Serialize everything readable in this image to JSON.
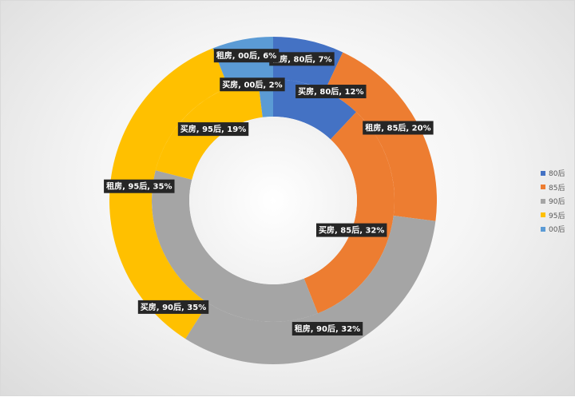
{
  "chart_data": {
    "type": "pie",
    "variant": "nested-doughnut",
    "title": "",
    "categories": [
      "80后",
      "85后",
      "90后",
      "95后",
      "00后"
    ],
    "colors": [
      "#4472C4",
      "#ED7D31",
      "#A5A5A5",
      "#FFC000",
      "#5B9BD5"
    ],
    "series": [
      {
        "name": "买房",
        "values": [
          12,
          32,
          35,
          19,
          2
        ],
        "labels": [
          "买房, 80后, 12%",
          "买房, 85后, 32%",
          "买房, 90后, 35%",
          "买房, 95后, 19%",
          "买房, 00后, 2%"
        ]
      },
      {
        "name": "租房",
        "values": [
          7,
          20,
          32,
          35,
          6
        ],
        "labels": [
          "租房, 80后, 7%",
          "租房, 85后, 20%",
          "租房, 90后, 32%",
          "租房, 95后, 35%",
          "租房, 00后, 6%"
        ]
      }
    ],
    "legend": {
      "position": "right",
      "items": [
        "80后",
        "85后",
        "90后",
        "95后",
        "00后"
      ]
    }
  }
}
